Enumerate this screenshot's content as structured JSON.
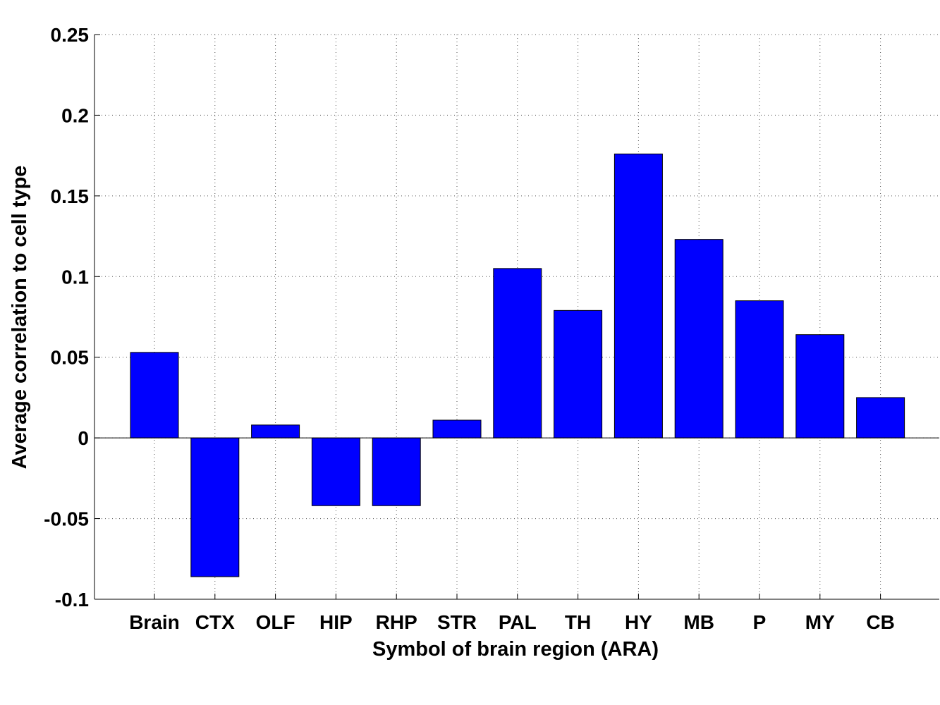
{
  "chart_data": {
    "type": "bar",
    "categories": [
      "Brain",
      "CTX",
      "OLF",
      "HIP",
      "RHP",
      "STR",
      "PAL",
      "TH",
      "HY",
      "MB",
      "P",
      "MY",
      "CB"
    ],
    "values": [
      0.053,
      -0.086,
      0.008,
      -0.042,
      -0.042,
      0.011,
      0.105,
      0.079,
      0.176,
      0.123,
      0.085,
      0.064,
      0.025
    ],
    "title": "",
    "xlabel": "Symbol of brain region (ARA)",
    "ylabel": "Average correlation to cell type",
    "ylim": [
      -0.1,
      0.25
    ],
    "yticks": [
      -0.1,
      -0.05,
      0,
      0.05,
      0.1,
      0.15,
      0.2,
      0.25
    ],
    "ytick_labels": [
      "-0.1",
      "-0.05",
      "0",
      "0.05",
      "0.1",
      "0.15",
      "0.2",
      "0.25"
    ],
    "grid": true,
    "bar_color": "#0000ff"
  }
}
